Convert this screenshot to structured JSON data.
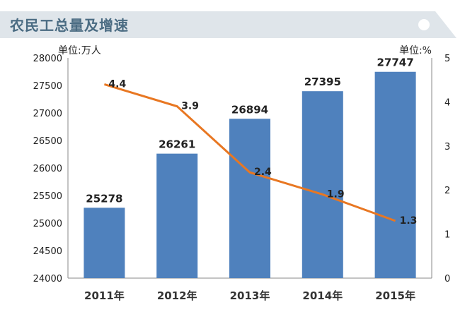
{
  "header": {
    "title": "农民工总量及增速"
  },
  "colors": {
    "bar": "#4f81bd",
    "line": "#e87722",
    "header_bg": "#dfe5ea",
    "header_text": "#4a6b82"
  },
  "chart_data": {
    "type": "bar+line",
    "categories": [
      "2011年",
      "2012年",
      "2013年",
      "2014年",
      "2015年"
    ],
    "series": [
      {
        "type": "bar",
        "axis": "left",
        "values": [
          25278,
          26261,
          26894,
          27395,
          27747
        ]
      },
      {
        "type": "line",
        "axis": "right",
        "values": [
          4.4,
          3.9,
          2.4,
          1.9,
          1.3
        ]
      }
    ],
    "left_axis": {
      "unit_label": "单位:万人",
      "ylim": [
        24000,
        28000
      ],
      "ticks": [
        24000,
        24500,
        25000,
        25500,
        26000,
        26500,
        27000,
        27500,
        28000
      ]
    },
    "right_axis": {
      "unit_label": "单位:%",
      "ylim": [
        0,
        5
      ],
      "ticks": [
        0,
        1,
        2,
        3,
        4,
        5
      ]
    },
    "grid": false,
    "legend": "none"
  }
}
